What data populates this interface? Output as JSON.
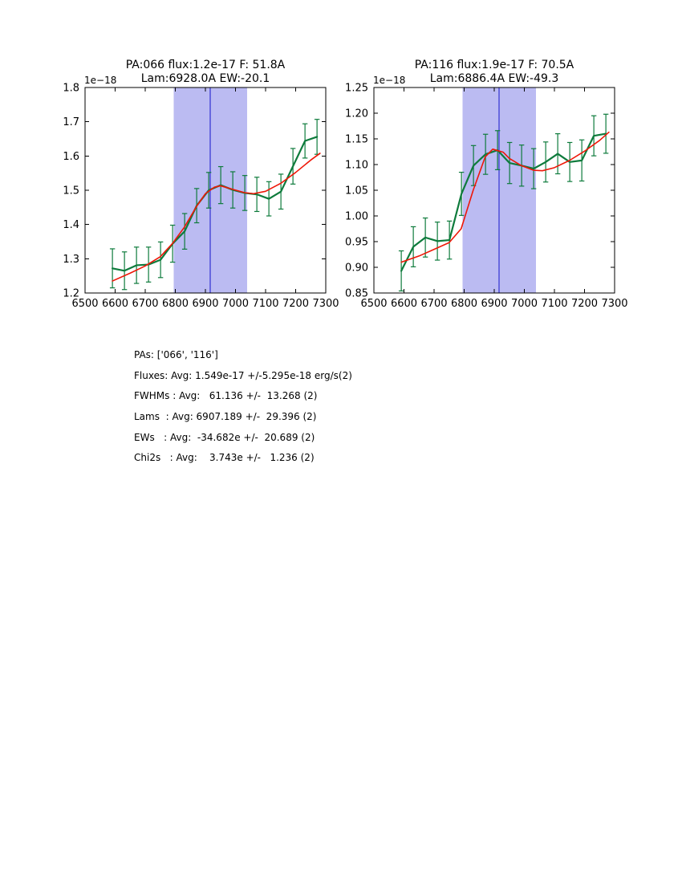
{
  "colors": {
    "background": "#ffffff",
    "axes": "#000000",
    "spectrum_green": "#0e7b3c",
    "fit_red": "#ee1708",
    "band_fill": "#bbbbf2",
    "center_line_blue": "#1414cc"
  },
  "chart_data": [
    {
      "type": "line",
      "title_line1": "PA:066 flux:1.2e-17 F: 51.8A",
      "title_line2": "Lam:6928.0A EW:-20.1",
      "offset_label": "1e−18",
      "xlim": [
        6500,
        7300
      ],
      "ylim": [
        1.2,
        1.8
      ],
      "xticks": [
        6500,
        6600,
        6700,
        6800,
        6900,
        7000,
        7100,
        7200,
        7300
      ],
      "xtick_labels": [
        "6500",
        "6600",
        "6700",
        "6800",
        "6900",
        "7000",
        "7100",
        "7200",
        "7300"
      ],
      "yticks": [
        1.2,
        1.3,
        1.4,
        1.5,
        1.6,
        1.7,
        1.8
      ],
      "ytick_labels": [
        "1.2",
        "1.3",
        "1.4",
        "1.5",
        "1.6",
        "1.7",
        "1.8"
      ],
      "band": [
        6795,
        7039
      ],
      "center_line_x": 6916,
      "series": [
        {
          "name": "spectrum",
          "x": [
            6591,
            6631,
            6671,
            6711,
            6751,
            6791,
            6831,
            6871,
            6911,
            6951,
            6991,
            7031,
            7071,
            7111,
            7151,
            7191,
            7231,
            7271
          ],
          "y": [
            1.272,
            1.265,
            1.281,
            1.283,
            1.297,
            1.344,
            1.38,
            1.455,
            1.5,
            1.515,
            1.501,
            1.492,
            1.488,
            1.475,
            1.496,
            1.57,
            1.644,
            1.656
          ],
          "yerr": [
            0.057,
            0.055,
            0.053,
            0.051,
            0.052,
            0.054,
            0.052,
            0.05,
            0.052,
            0.054,
            0.053,
            0.051,
            0.05,
            0.05,
            0.051,
            0.052,
            0.05,
            0.051
          ]
        },
        {
          "name": "fit",
          "x": [
            6591,
            6650,
            6700,
            6750,
            6790,
            6830,
            6870,
            6900,
            6930,
            6950,
            6990,
            7030,
            7060,
            7100,
            7150,
            7200,
            7250,
            7281
          ],
          "y": [
            1.235,
            1.258,
            1.279,
            1.306,
            1.344,
            1.392,
            1.452,
            1.49,
            1.509,
            1.513,
            1.503,
            1.493,
            1.49,
            1.497,
            1.52,
            1.552,
            1.588,
            1.608
          ]
        }
      ]
    },
    {
      "type": "line",
      "title_line1": "PA:116 flux:1.9e-17 F: 70.5A",
      "title_line2": "Lam:6886.4A EW:-49.3",
      "offset_label": "1e−18",
      "xlim": [
        6500,
        7300
      ],
      "ylim": [
        0.85,
        1.25
      ],
      "xticks": [
        6500,
        6600,
        6700,
        6800,
        6900,
        7000,
        7100,
        7200,
        7300
      ],
      "xtick_labels": [
        "6500",
        "6600",
        "6700",
        "6800",
        "6900",
        "7000",
        "7100",
        "7200",
        "7300"
      ],
      "yticks": [
        0.85,
        0.9,
        0.95,
        1.0,
        1.05,
        1.1,
        1.15,
        1.2,
        1.25
      ],
      "ytick_labels": [
        "0.85",
        "0.90",
        "0.95",
        "1.00",
        "1.05",
        "1.10",
        "1.15",
        "1.20",
        "1.25"
      ],
      "band": [
        6795,
        7039
      ],
      "center_line_x": 6916,
      "series": [
        {
          "name": "spectrum",
          "x": [
            6591,
            6631,
            6671,
            6711,
            6751,
            6791,
            6831,
            6871,
            6911,
            6951,
            6991,
            7031,
            7071,
            7111,
            7151,
            7191,
            7231,
            7271
          ],
          "y": [
            0.893,
            0.94,
            0.958,
            0.951,
            0.953,
            1.043,
            1.098,
            1.12,
            1.128,
            1.103,
            1.098,
            1.092,
            1.105,
            1.121,
            1.105,
            1.108,
            1.156,
            1.16
          ],
          "yerr": [
            0.039,
            0.039,
            0.038,
            0.037,
            0.037,
            0.042,
            0.039,
            0.039,
            0.038,
            0.04,
            0.04,
            0.039,
            0.039,
            0.039,
            0.038,
            0.04,
            0.039,
            0.038
          ]
        },
        {
          "name": "fit",
          "x": [
            6591,
            6650,
            6700,
            6750,
            6790,
            6830,
            6870,
            6895,
            6930,
            6950,
            6990,
            7030,
            7060,
            7100,
            7150,
            7200,
            7250,
            7281
          ],
          "y": [
            0.91,
            0.922,
            0.935,
            0.948,
            0.975,
            1.05,
            1.115,
            1.13,
            1.124,
            1.112,
            1.098,
            1.089,
            1.088,
            1.094,
            1.108,
            1.126,
            1.147,
            1.163
          ]
        }
      ]
    }
  ],
  "stats": {
    "lines": [
      "PAs: ['066', '116']",
      "Fluxes: Avg: 1.549e-17 +/-5.295e-18 erg/s(2)",
      "FWHMs : Avg:   61.136 +/-  13.268 (2)",
      "Lams  : Avg: 6907.189 +/-  29.396 (2)",
      "EWs   : Avg:  -34.682e +/-  20.689 (2)",
      "Chi2s   : Avg:    3.743e +/-   1.236 (2)"
    ]
  }
}
